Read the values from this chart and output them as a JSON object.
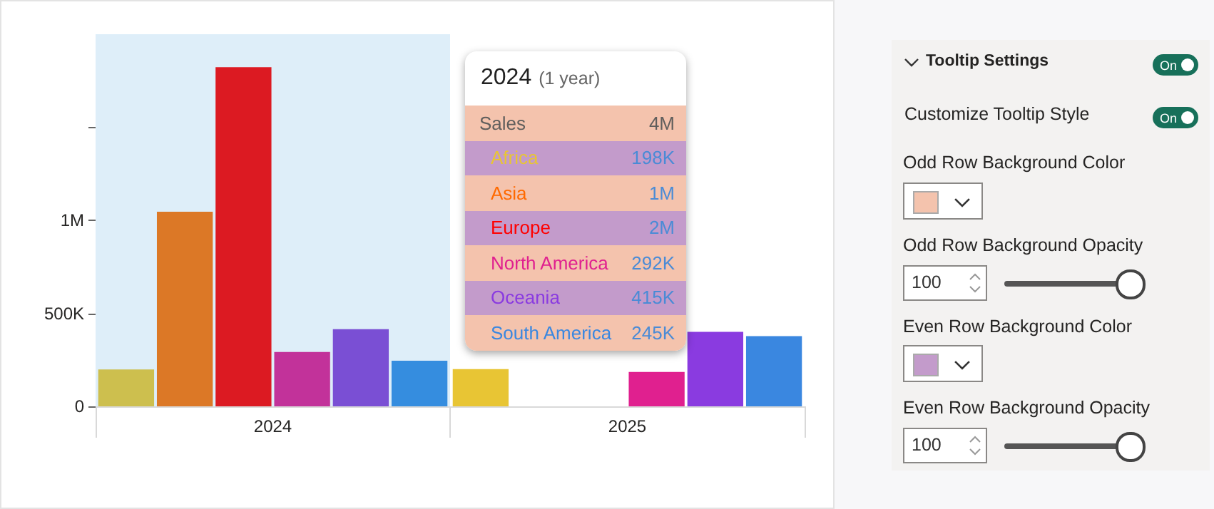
{
  "chart_data": [
    {
      "type": "bar",
      "categories": [
        "2024",
        "2025"
      ],
      "series": [
        {
          "name": "Africa",
          "colors": [
            "#cdbf4e",
            "#e8c534"
          ],
          "values": [
            198000,
            200000
          ]
        },
        {
          "name": "Asia",
          "colors": [
            "#dc7826",
            "#ff6a00"
          ],
          "values": [
            1046000,
            null
          ]
        },
        {
          "name": "Europe",
          "colors": [
            "#dc1a22",
            "#ff0000"
          ],
          "values": [
            1823000,
            null
          ]
        },
        {
          "name": "North America",
          "colors": [
            "#c2329a",
            "#e0208f"
          ],
          "values": [
            292000,
            185000
          ]
        },
        {
          "name": "Oceania",
          "colors": [
            "#7a4fd4",
            "#8a3be0"
          ],
          "values": [
            415000,
            400000
          ]
        },
        {
          "name": "South America",
          "colors": [
            "#358ddf",
            "#3a87e0"
          ],
          "values": [
            245000,
            377000
          ]
        }
      ],
      "ylim": [
        0,
        2000000
      ],
      "yticks": [
        0,
        {
          "value": 500000,
          "label": "500K"
        },
        {
          "value": 1000000,
          "label": "1M"
        },
        {
          "value": 1500000,
          "label": null
        }
      ],
      "bands": [
        {
          "axis": "x",
          "from": "2024",
          "to": "2024",
          "color": "#deeef9"
        }
      ],
      "annotations": [
        "2024",
        "(1 year)",
        "Sales",
        "4M",
        "198K",
        "1M",
        "2M",
        "292K",
        "415K",
        "245K"
      ]
    },
    {
      "type": "other",
      "title": "Tooltip Settings",
      "colors": [
        "#f4c3ad",
        "#c39bcb"
      ],
      "annotations": [
        "On",
        "Customize Tooltip Style",
        "On",
        "Odd Row Background Color",
        "Odd Row Background Opacity",
        "100",
        "Even Row Background Color",
        "Even Row Background Opacity",
        "100"
      ]
    }
  ]
}
